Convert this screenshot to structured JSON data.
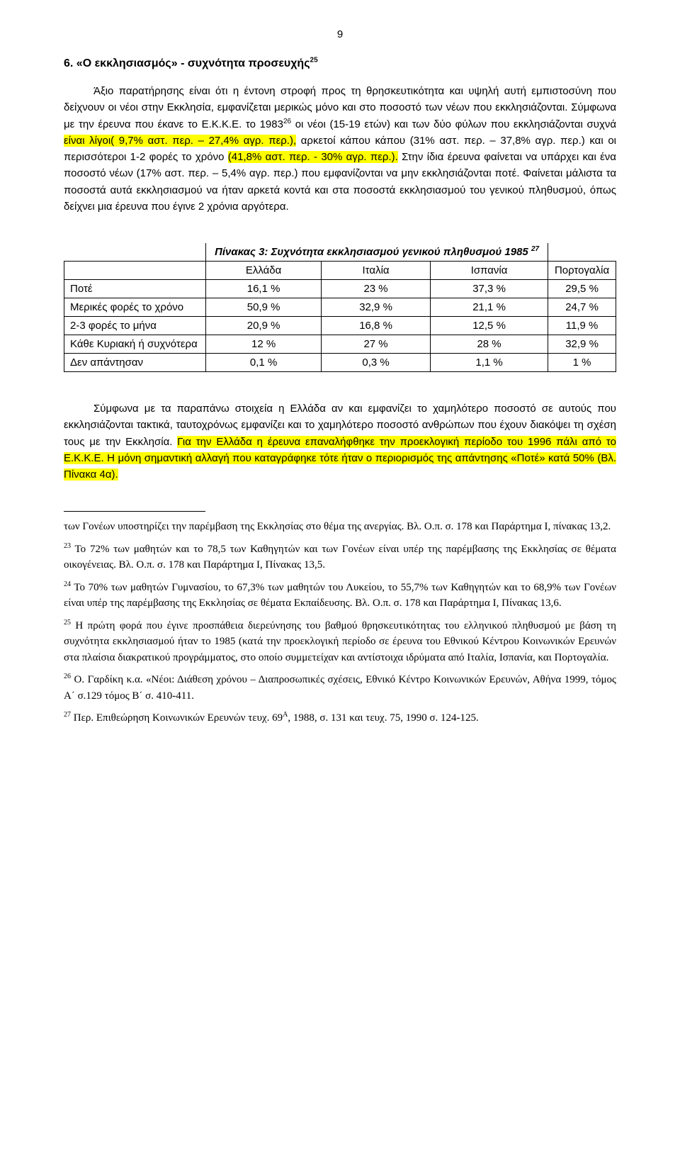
{
  "page_number": "9",
  "heading": {
    "text_pre": "6. «Ο εκκλησιασμός» - συχνότητα προσευχής",
    "sup": "25"
  },
  "para1": {
    "t1": "Άξιο παρατήρησης είναι ότι η έντονη στροφή προς τη θρησκευτικότητα και υψηλή αυτή εμπιστοσύνη που δείχνουν οι νέοι στην Εκκλησία, εμφανίζεται μερικώς μόνο και στο ποσοστό των νέων που εκκλησιάζονται. Σύμφωνα με την έρευνα που έκανε το Ε.Κ.Κ.Ε. το 1983",
    "sup": "26",
    "t2": " οι νέοι (15-19 ετών) και των δύο φύλων που εκκλησιάζονται συχνά ",
    "hl1": "είναι λίγοι( 9,7% αστ. περ. – 27,4% αγρ. περ.),",
    "t3": " αρκετοί κάπου κάπου (31% αστ. περ. – 37,8% αγρ. περ.) και οι περισσότεροι 1-2 φορές το χρόνο ",
    "hl2": "(41,8% αστ. περ. - 30% αγρ. περ.).",
    "t4": " Στην ίδια έρευνα φαίνεται να υπάρχει και ένα ποσοστό νέων (17% αστ. περ. – 5,4% αγρ. περ.) που εμφανίζονται να μην εκκλησιάζονται ποτέ. Φαίνεται μάλιστα τα ποσοστά αυτά εκκλησιασμού να ήταν αρκετά κοντά και στα ποσοστά εκκλησιασμού του γενικού πληθυσμού, όπως δείχνει μια έρευνα που έγινε 2 χρόνια αργότερα."
  },
  "table": {
    "caption_pre": "Πίνακας 3: Συχνότητα εκκλησιασμού γενικού πληθυσμού 1985 ",
    "caption_sup": "27",
    "columns": [
      "",
      "Ελλάδα",
      "Ιταλία",
      "Ισπανία",
      "Πορτογαλία"
    ],
    "rows": [
      {
        "label": "Ποτέ",
        "cells": [
          "16,1 %",
          "23 %",
          "37,3 %",
          "29,5 %"
        ]
      },
      {
        "label": "Μερικές φορές το χρόνο",
        "cells": [
          "50,9 %",
          "32,9 %",
          "21,1 %",
          "24,7 %"
        ]
      },
      {
        "label": "2-3 φορές το μήνα",
        "cells": [
          "20,9 %",
          "16,8 %",
          "12,5 %",
          "11,9 %"
        ]
      },
      {
        "label": "Κάθε Κυριακή ή συχνότερα",
        "cells": [
          "12 %",
          "27 %",
          "28 %",
          "32,9 %"
        ]
      },
      {
        "label": "Δεν απάντησαν",
        "cells": [
          "0,1 %",
          "0,3 %",
          "1,1 %",
          "1 %"
        ]
      }
    ]
  },
  "para2": {
    "t1": "Σύμφωνα με τα παραπάνω στοιχεία η Ελλάδα αν και εμφανίζει το χαμηλότερο ποσοστό σε αυτούς που εκκλησιάζονται τακτικά, ταυτοχρόνως εμφανίζει και το χαμηλότερο ποσοστό ανθρώπων που έχουν διακόψει τη σχέση τους με την Εκκλησία. ",
    "hl1": "Για την Ελλάδα η έρευνα επαναλήφθηκε την προεκλογική περίοδο του 1996 πάλι από το Ε.Κ.Κ.Ε. Η μόνη σημαντική αλλαγή που καταγράφηκε τότε ήταν ο περιορισμός της απάντησης «Ποτέ» κατά 50% (Βλ. Πίνακα 4α)."
  },
  "footnotes": {
    "lead": "των Γονέων υποστηρίζει την παρέμβαση της Εκκλησίας στο θέμα της ανεργίας. Βλ. Ο.π. σ. 178 και Παράρτημα Ι, πίνακας 13,2.",
    "fn23": {
      "n": "23",
      "t": "Το 72% των μαθητών και το 78,5 των Καθηγητών και των Γονέων είναι υπέρ της παρέμβασης της Εκκλησίας σε θέματα οικογένειας. Βλ. Ο.π. σ. 178 και Παράρτημα Ι, Πίνακας 13,5."
    },
    "fn24": {
      "n": "24",
      "t": "Το 70% των μαθητών Γυμνασίου, το 67,3% των μαθητών του Λυκείου, το 55,7% των Καθηγητών και το 68,9% των Γονέων είναι υπέρ της παρέμβασης της Εκκλησίας σε θέματα Εκπαίδευσης. Βλ. Ο.π. σ. 178 και Παράρτημα Ι, Πίνακας 13,6."
    },
    "fn25": {
      "n": "25",
      "t": "Η πρώτη φορά που έγινε προσπάθεια διερεύνησης του βαθμού θρησκευτικότητας του ελληνικού πληθυσμού με βάση τη συχνότητα εκκλησιασμού ήταν το 1985 (κατά την προεκλογική περίοδο σε έρευνα του Εθνικού Κέντρου Κοινωνικών Ερευνών στα πλαίσια διακρατικού προγράμματος, στο οποίο συμμετείχαν και αντίστοιχα ιδρύματα από Ιταλία, Ισπανία, και Πορτογαλία."
    },
    "fn26": {
      "n": "26",
      "t": "Ο. Γαρδίκη κ.α. «Νέοι: Διάθεση χρόνου – Διαπροσωπικές σχέσεις, Εθνικό Κέντρο Κοινωνικών Ερευνών, Αθήνα 1999, τόμος Α΄ σ.129 τόμος Β΄ σ. 410-411."
    },
    "fn27": {
      "n": "27",
      "pre": "Περ. Επιθεώρηση Κοινωνικών Ερευνών τευχ. 69",
      "sup": "Α",
      "post": ", 1988, σ. 131 και τευχ. 75, 1990 σ. 124-125."
    }
  }
}
